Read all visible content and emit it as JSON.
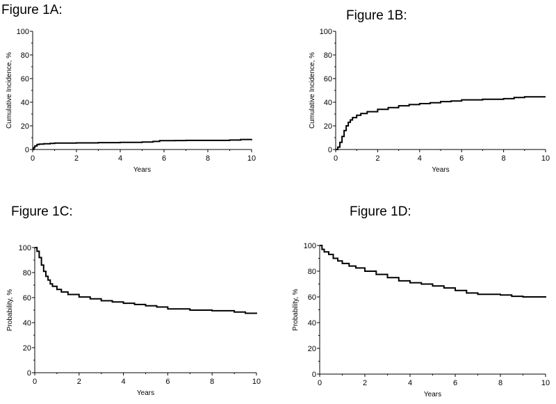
{
  "figures": [
    {
      "title": "Figure 1A:"
    },
    {
      "title": "Figure 1B:"
    },
    {
      "title": "Figure 1C:"
    },
    {
      "title": "Figure 1D:"
    }
  ],
  "chart_data": [
    {
      "type": "line",
      "title": "Figure 1A:",
      "xlabel": "Years",
      "ylabel": "Cumulative Incidence, %",
      "xlim": [
        0,
        10
      ],
      "ylim": [
        0,
        100
      ],
      "xticks": [
        0,
        2,
        4,
        6,
        8,
        10
      ],
      "yticks": [
        0,
        20,
        40,
        60,
        80,
        100
      ],
      "grid": false,
      "step": true,
      "x": [
        0,
        0.05,
        0.1,
        0.2,
        0.3,
        0.5,
        0.8,
        1.0,
        2.0,
        3.0,
        4.0,
        5.0,
        5.5,
        5.8,
        6.5,
        7.0,
        8.0,
        9.0,
        9.5,
        10.0
      ],
      "y": [
        0,
        1.5,
        3.0,
        4.3,
        4.6,
        4.8,
        5.2,
        5.5,
        5.6,
        5.8,
        6.0,
        6.3,
        6.8,
        7.5,
        7.6,
        7.7,
        7.7,
        8.0,
        8.5,
        8.8
      ]
    },
    {
      "type": "line",
      "title": "Figure 1B:",
      "xlabel": "Years",
      "ylabel": "Cumulative Incidence, %",
      "xlim": [
        0,
        10
      ],
      "ylim": [
        0,
        100
      ],
      "xticks": [
        0,
        2,
        4,
        6,
        8,
        10
      ],
      "yticks": [
        0,
        20,
        40,
        60,
        80,
        100
      ],
      "grid": false,
      "step": true,
      "x": [
        0,
        0.1,
        0.2,
        0.3,
        0.4,
        0.5,
        0.6,
        0.7,
        0.8,
        1.0,
        1.2,
        1.5,
        2.0,
        2.5,
        3.0,
        3.5,
        4.0,
        4.5,
        5.0,
        5.5,
        6.0,
        7.0,
        8.0,
        8.5,
        9.0,
        10.0
      ],
      "y": [
        0,
        2,
        6,
        11,
        16,
        20,
        23,
        25,
        27,
        29,
        30.5,
        32,
        34,
        35.5,
        37,
        38,
        38.8,
        39.5,
        40.5,
        41,
        42,
        42.5,
        43,
        44,
        44.5,
        44.5
      ]
    },
    {
      "type": "line",
      "title": "Figure 1C:",
      "xlabel": "Years",
      "ylabel": "Probability, %",
      "xlim": [
        0,
        10
      ],
      "ylim": [
        0,
        100
      ],
      "xticks": [
        0,
        2,
        4,
        6,
        8,
        10
      ],
      "yticks": [
        0,
        20,
        40,
        60,
        80,
        100
      ],
      "grid": false,
      "step": true,
      "x": [
        0,
        0.1,
        0.2,
        0.3,
        0.4,
        0.5,
        0.6,
        0.7,
        0.8,
        1.0,
        1.2,
        1.5,
        2.0,
        2.5,
        3.0,
        3.5,
        4.0,
        4.5,
        5.0,
        5.5,
        6.0,
        7.0,
        8.0,
        9.0,
        9.5,
        10.0
      ],
      "y": [
        100,
        97,
        92,
        86,
        81,
        77,
        74,
        71,
        69,
        66.5,
        64.5,
        62.5,
        60.5,
        59,
        57.5,
        56.5,
        55.5,
        54.5,
        53.5,
        52.5,
        51,
        50,
        49.5,
        48.5,
        47.5,
        47
      ]
    },
    {
      "type": "line",
      "title": "Figure 1D:",
      "xlabel": "Years",
      "ylabel": "Probability, %",
      "xlim": [
        0,
        10
      ],
      "ylim": [
        0,
        100
      ],
      "xticks": [
        0,
        2,
        4,
        6,
        8,
        10
      ],
      "yticks": [
        0,
        20,
        40,
        60,
        80,
        100
      ],
      "grid": false,
      "step": true,
      "x": [
        0,
        0.1,
        0.2,
        0.4,
        0.6,
        0.8,
        1.0,
        1.3,
        1.6,
        2.0,
        2.5,
        3.0,
        3.5,
        4.0,
        4.5,
        5.0,
        5.5,
        6.0,
        6.5,
        7.0,
        8.0,
        8.5,
        9.0,
        10.0
      ],
      "y": [
        100,
        97,
        95,
        93,
        90,
        88,
        86,
        84,
        82.5,
        80,
        77.5,
        75,
        72.5,
        71,
        70,
        68.5,
        67,
        65,
        63,
        62,
        61.5,
        60.5,
        60,
        59.5
      ]
    }
  ]
}
